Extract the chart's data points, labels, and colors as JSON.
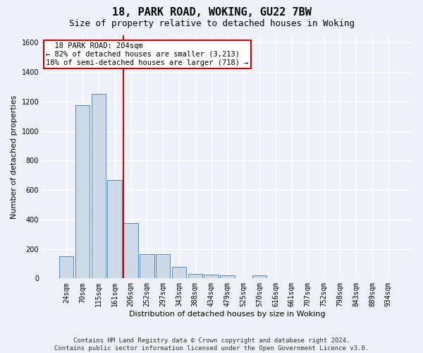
{
  "title": "18, PARK ROAD, WOKING, GU22 7BW",
  "subtitle": "Size of property relative to detached houses in Woking",
  "xlabel": "Distribution of detached houses by size in Woking",
  "ylabel": "Number of detached properties",
  "categories": [
    "24sqm",
    "70sqm",
    "115sqm",
    "161sqm",
    "206sqm",
    "252sqm",
    "297sqm",
    "343sqm",
    "388sqm",
    "434sqm",
    "479sqm",
    "525sqm",
    "570sqm",
    "616sqm",
    "661sqm",
    "707sqm",
    "752sqm",
    "798sqm",
    "843sqm",
    "889sqm",
    "934sqm"
  ],
  "values": [
    150,
    1175,
    1250,
    670,
    375,
    165,
    165,
    80,
    30,
    25,
    20,
    0,
    20,
    0,
    0,
    0,
    0,
    0,
    0,
    0,
    0
  ],
  "bar_color": "#ccd9e8",
  "bar_edge_color": "#5588bb",
  "property_line_label": "18 PARK ROAD: 204sqm",
  "annotation_smaller": "← 82% of detached houses are smaller (3,213)",
  "annotation_larger": "18% of semi-detached houses are larger (718) →",
  "annotation_box_color": "#ffffff",
  "annotation_box_edge": "#cc0000",
  "red_line_color": "#cc0000",
  "red_line_bin_index": 4,
  "ylim": [
    0,
    1650
  ],
  "yticks": [
    0,
    200,
    400,
    600,
    800,
    1000,
    1200,
    1400,
    1600
  ],
  "footer": "Contains HM Land Registry data © Crown copyright and database right 2024.\nContains public sector information licensed under the Open Government Licence v3.0.",
  "background_color": "#eef2f8",
  "grid_color": "#ffffff",
  "title_fontsize": 11,
  "subtitle_fontsize": 9,
  "axis_label_fontsize": 8,
  "tick_fontsize": 7,
  "footer_fontsize": 6.5,
  "annotation_fontsize": 7.5
}
